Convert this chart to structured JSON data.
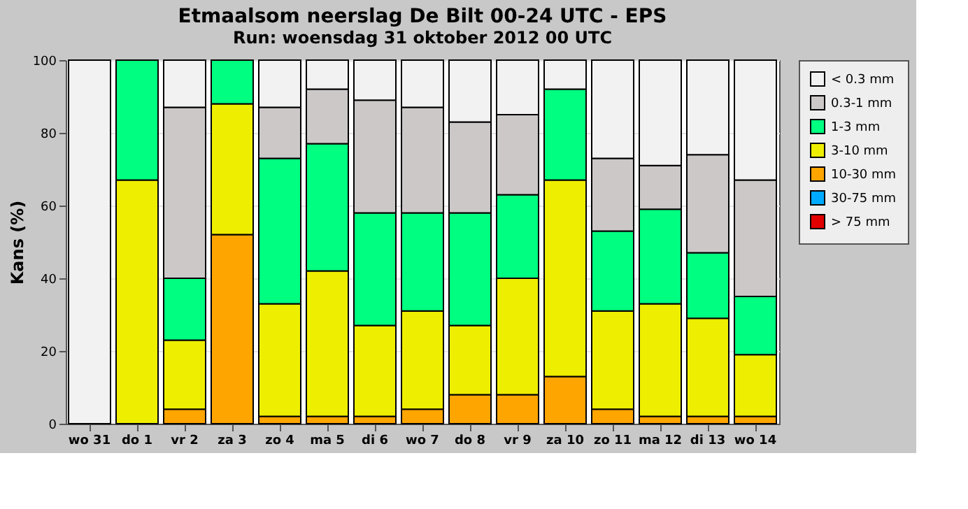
{
  "chart_data": {
    "type": "bar",
    "stacked": true,
    "title": "Etmaalsom neerslag De Bilt 00-24 UTC - EPS",
    "subtitle": "Run: woensdag 31 oktober 2012   00 UTC",
    "ylabel": "Kans (%)",
    "categories": [
      "wo 31",
      "do  1",
      "vr  2",
      "za  3",
      "zo  4",
      "ma  5",
      "di  6",
      "wo  7",
      "do  8",
      "vr  9",
      "za 10",
      "zo 11",
      "ma 12",
      "di 13",
      "wo 14"
    ],
    "series": [
      {
        "name": "> 75 mm",
        "color": "#e00000",
        "values": [
          0,
          0,
          0,
          0,
          0,
          0,
          0,
          0,
          0,
          0,
          0,
          0,
          0,
          0,
          0
        ]
      },
      {
        "name": "30-75 mm",
        "color": "#00aaff",
        "values": [
          0,
          0,
          0,
          0,
          0,
          0,
          0,
          0,
          0,
          0,
          0,
          0,
          0,
          0,
          0
        ]
      },
      {
        "name": "10-30 mm",
        "color": "#ffa500",
        "values": [
          0,
          0,
          4,
          52,
          2,
          2,
          2,
          4,
          8,
          8,
          13,
          4,
          2,
          2,
          2
        ]
      },
      {
        "name": "3-10 mm",
        "color": "#eeee00",
        "values": [
          0,
          67,
          19,
          36,
          31,
          40,
          25,
          27,
          19,
          32,
          54,
          27,
          31,
          27,
          17
        ]
      },
      {
        "name": "1-3 mm",
        "color": "#00ff80",
        "values": [
          0,
          33,
          17,
          12,
          40,
          35,
          31,
          27,
          31,
          23,
          25,
          22,
          26,
          18,
          16
        ]
      },
      {
        "name": "0.3-1 mm",
        "color": "#ccc8c8",
        "values": [
          0,
          0,
          47,
          0,
          14,
          15,
          31,
          29,
          25,
          22,
          0,
          20,
          12,
          27,
          32
        ]
      },
      {
        "name": "< 0.3 mm",
        "color": "#f2f2f2",
        "values": [
          100,
          0,
          13,
          0,
          13,
          8,
          11,
          13,
          17,
          15,
          8,
          27,
          29,
          26,
          33
        ]
      }
    ],
    "ylim": [
      0,
      100
    ],
    "yticks": [
      0,
      20,
      40,
      60,
      80,
      100
    ],
    "grid": "y",
    "legend": "top right"
  }
}
